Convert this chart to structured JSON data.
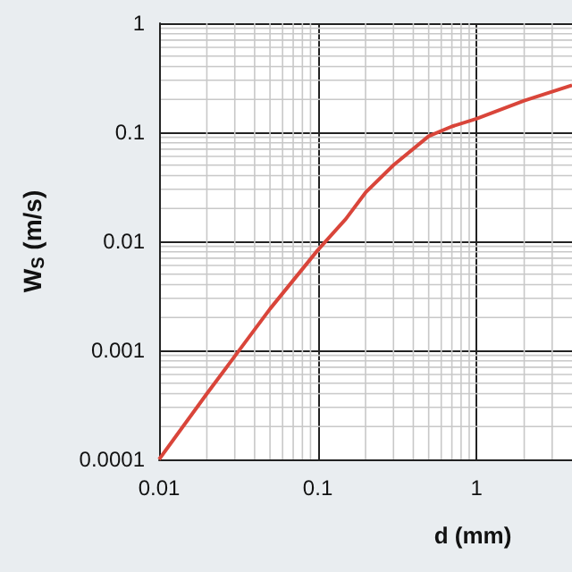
{
  "chart_data": {
    "type": "line",
    "xlabel": "d (mm)",
    "ylabel": "W$_{S}$ (m/s)",
    "log": "xy",
    "grid": true,
    "marker": "none",
    "line_style": "solid",
    "xlim": [
      0.01,
      4
    ],
    "xticks": [
      0.01,
      0.1,
      1
    ],
    "ylim": [
      0.0001,
      1
    ],
    "yticks": [
      0.0001,
      0.001,
      0.01,
      0.1,
      1
    ],
    "x": [
      0.01,
      0.02,
      0.05,
      0.1,
      0.15,
      0.2,
      0.3,
      0.5,
      0.7,
      1,
      2,
      4
    ],
    "series": [
      {
        "color": "#d9453a",
        "values": [
          0.0001,
          0.0004,
          0.0024,
          0.0083,
          0.016,
          0.028,
          0.05,
          0.092,
          0.113,
          0.133,
          0.195,
          0.27
        ]
      }
    ]
  }
}
